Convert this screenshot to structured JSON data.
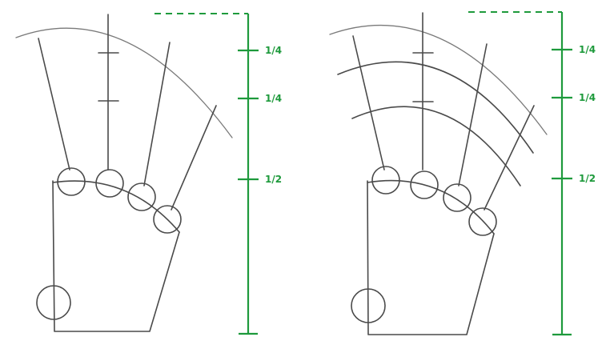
{
  "colors": {
    "guide": "#1e9a3c",
    "pencil": "#4a4a4a",
    "background": "#ffffff"
  },
  "panels": [
    {
      "name": "left",
      "labels": [
        "1/4",
        "1/4",
        "1/2"
      ],
      "has_finger_arcs": false
    },
    {
      "name": "right",
      "labels": [
        "1/4",
        "1/4",
        "1/2"
      ],
      "has_finger_arcs": true
    }
  ]
}
